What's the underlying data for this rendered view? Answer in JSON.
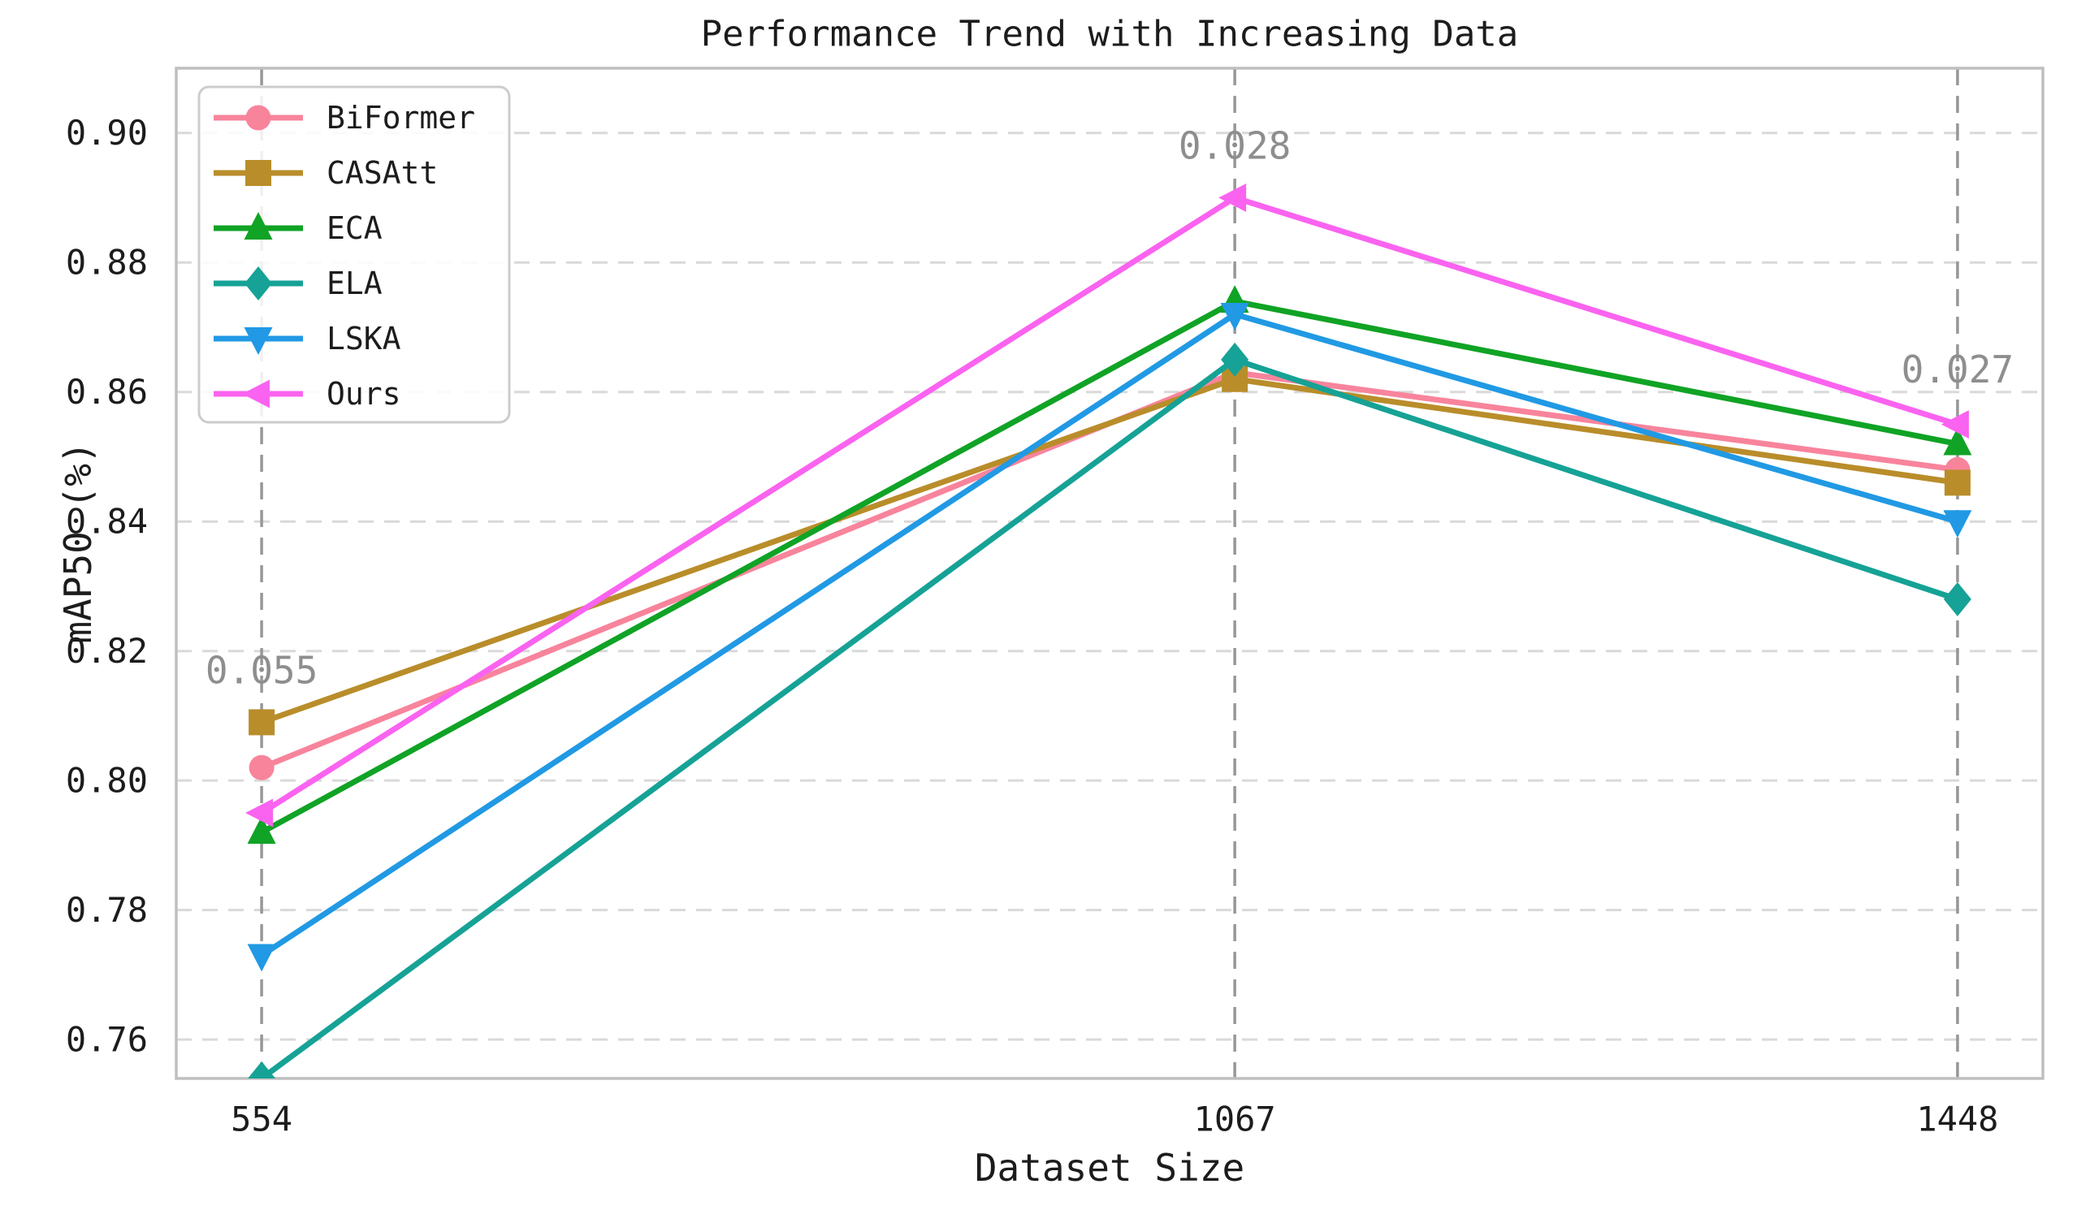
{
  "chart_data": {
    "type": "line",
    "title": "Performance Trend with Increasing Data",
    "xlabel": "Dataset Size",
    "ylabel": "mAP50 (%)",
    "x": [
      554,
      1067,
      1448
    ],
    "xtick_labels": [
      "554",
      "1067",
      "1448"
    ],
    "yticks": [
      0.76,
      0.78,
      0.8,
      0.82,
      0.84,
      0.86,
      0.88,
      0.9
    ],
    "ytick_labels": [
      "0.76",
      "0.78",
      "0.80",
      "0.82",
      "0.84",
      "0.86",
      "0.88",
      "0.90"
    ],
    "xlim": [
      509,
      1493
    ],
    "ylim": [
      0.754,
      0.91
    ],
    "grid": true,
    "legend_position": "upper left",
    "series": [
      {
        "name": "BiFormer",
        "marker": "circle",
        "color": "#F8849C",
        "values": [
          0.802,
          0.863,
          0.848
        ]
      },
      {
        "name": "CASAtt",
        "marker": "square",
        "color": "#B98D2A",
        "values": [
          0.809,
          0.862,
          0.846
        ]
      },
      {
        "name": "ECA",
        "marker": "triangle-up",
        "color": "#10A325",
        "values": [
          0.792,
          0.874,
          0.852
        ]
      },
      {
        "name": "ELA",
        "marker": "diamond",
        "color": "#16A296",
        "values": [
          0.754,
          0.865,
          0.828
        ]
      },
      {
        "name": "LSKA",
        "marker": "triangle-down",
        "color": "#2199E4",
        "values": [
          0.773,
          0.872,
          0.84
        ]
      },
      {
        "name": "Ours",
        "marker": "triangle-left",
        "color": "#FA63F0",
        "values": [
          0.795,
          0.89,
          0.855
        ]
      }
    ],
    "annotations": [
      {
        "text": "0.055",
        "x": 554,
        "y": 0.817
      },
      {
        "text": "0.028",
        "x": 1067,
        "y": 0.898
      },
      {
        "text": "0.027",
        "x": 1448,
        "y": 0.8635
      }
    ],
    "style": {
      "annotation_color": "#8e8e8e",
      "h_grid_color": "#d9d9d9",
      "v_grid_color": "#979797",
      "spine_color": "#bfbfbf",
      "text_color": "#1c1c1c",
      "background": "#ffffff"
    }
  }
}
